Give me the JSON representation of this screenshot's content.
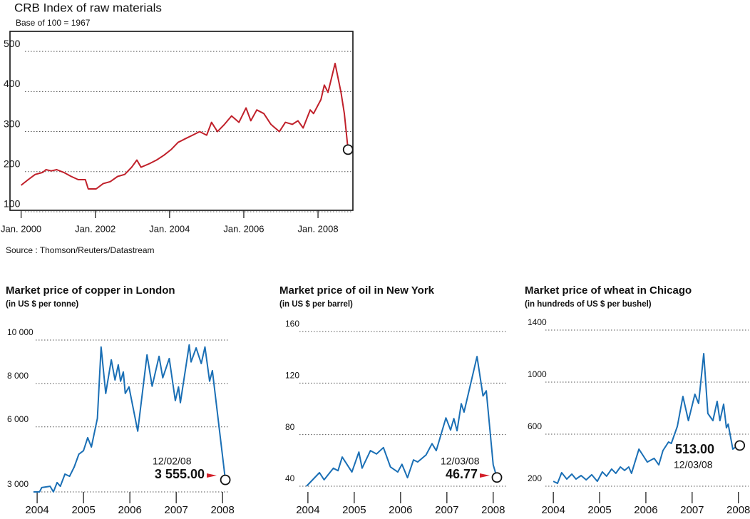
{
  "chart_data": [
    {
      "type": "line",
      "title": "CRB Index of raw materials",
      "subtitle": "Base of 100 = 1967",
      "source": "Source : Thomson/Reuters/Datastream",
      "color": "#c0202a",
      "grid": true,
      "xlim": [
        1999.7,
        2008.94
      ],
      "ylim": [
        100,
        550
      ],
      "xticks": [
        {
          "value": 2000,
          "label": "Jan. 2000"
        },
        {
          "value": 2002,
          "label": "Jan. 2002"
        },
        {
          "value": 2004,
          "label": "Jan. 2004"
        },
        {
          "value": 2006,
          "label": "Jan. 2006"
        },
        {
          "value": 2008,
          "label": "Jan. 2008"
        }
      ],
      "yticks": [
        100,
        200,
        300,
        400,
        500
      ],
      "x": [
        2000.0,
        2000.19,
        2000.38,
        2000.58,
        2000.67,
        2000.81,
        2000.96,
        2001.15,
        2001.35,
        2001.54,
        2001.73,
        2001.81,
        2002.02,
        2002.21,
        2002.4,
        2002.6,
        2002.79,
        2002.98,
        2003.12,
        2003.23,
        2003.46,
        2003.65,
        2003.85,
        2004.04,
        2004.23,
        2004.42,
        2004.62,
        2004.81,
        2005.0,
        2005.13,
        2005.29,
        2005.48,
        2005.67,
        2005.87,
        2006.06,
        2006.19,
        2006.35,
        2006.54,
        2006.73,
        2006.96,
        2007.12,
        2007.31,
        2007.46,
        2007.6,
        2007.79,
        2007.88,
        2008.08,
        2008.17,
        2008.27,
        2008.46,
        2008.62,
        2008.71,
        2008.81
      ],
      "values": [
        166,
        180,
        193,
        198,
        205,
        202,
        205,
        198,
        188,
        180,
        180,
        157,
        157,
        170,
        175,
        188,
        193,
        211,
        229,
        211,
        220,
        229,
        241,
        255,
        273,
        282,
        291,
        300,
        291,
        323,
        300,
        318,
        339,
        323,
        359,
        327,
        354,
        345,
        318,
        300,
        323,
        318,
        327,
        309,
        354,
        345,
        380,
        416,
        398,
        470,
        398,
        345,
        255
      ]
    },
    {
      "type": "line",
      "title": "Market price of copper in London",
      "subtitle": "(in US $ per tonne)",
      "color": "#1a6fb5",
      "grid": true,
      "xlim": [
        2003.66,
        2008.12
      ],
      "ylim": [
        3000,
        10000
      ],
      "xticks": [
        2004,
        2005,
        2006,
        2007,
        2008
      ],
      "yticks": [
        {
          "value": 3000,
          "label": "3 000"
        },
        {
          "value": 6000,
          "label": "6 000"
        },
        {
          "value": 8000,
          "label": "8 000"
        },
        {
          "value": 10000,
          "label": "10 000"
        }
      ],
      "x": [
        2003.92,
        2004.05,
        2004.1,
        2004.28,
        2004.35,
        2004.43,
        2004.5,
        2004.6,
        2004.7,
        2004.8,
        2004.9,
        2005.0,
        2005.09,
        2005.17,
        2005.3,
        2005.38,
        2005.48,
        2005.6,
        2005.68,
        2005.75,
        2005.8,
        2005.86,
        2005.9,
        2005.98,
        2006.17,
        2006.37,
        2006.48,
        2006.63,
        2006.71,
        2006.85,
        2006.98,
        2007.05,
        2007.09,
        2007.28,
        2007.32,
        2007.43,
        2007.54,
        2007.62,
        2007.72,
        2007.78,
        2008.06
      ],
      "values": [
        3000,
        3000,
        3200,
        3260,
        3000,
        3430,
        3260,
        3820,
        3720,
        4150,
        4740,
        4900,
        5500,
        5070,
        6390,
        9680,
        7540,
        9090,
        8160,
        8860,
        8100,
        8530,
        7540,
        7840,
        5800,
        9320,
        7870,
        9250,
        8260,
        9150,
        7210,
        7840,
        7110,
        9780,
        8990,
        9640,
        8920,
        9680,
        8100,
        8590,
        3555
      ],
      "end_label": "3 555.00",
      "end_date": "12/02/08"
    },
    {
      "type": "line",
      "title": "Market price of oil in New York",
      "subtitle": "(in US $ per barrel)",
      "color": "#1a6fb5",
      "grid": true,
      "xlim": [
        2003.54,
        2008.28
      ],
      "ylim": [
        40,
        160
      ],
      "xticks": [
        2004,
        2005,
        2006,
        2007,
        2008
      ],
      "yticks": [
        40,
        80,
        120,
        160
      ],
      "x": [
        2003.97,
        2004.25,
        2004.35,
        2004.55,
        2004.65,
        2004.74,
        2004.95,
        2005.1,
        2005.17,
        2005.35,
        2005.48,
        2005.63,
        2005.78,
        2005.94,
        2006.03,
        2006.15,
        2006.28,
        2006.37,
        2006.55,
        2006.68,
        2006.77,
        2006.98,
        2007.08,
        2007.15,
        2007.22,
        2007.31,
        2007.37,
        2007.65,
        2007.78,
        2007.85,
        2008.0,
        2008.08
      ],
      "values": [
        40,
        50.5,
        45,
        54,
        52,
        62.6,
        51,
        66.5,
        54,
        67.6,
        65,
        70,
        55,
        51,
        57,
        46.6,
        60.4,
        58.8,
        64.3,
        73,
        67.6,
        93,
        83.6,
        92.5,
        83,
        104,
        97.5,
        140.6,
        110,
        114,
        56.6,
        46.77
      ],
      "end_label": "46.77",
      "end_date": "12/03/08"
    },
    {
      "type": "line",
      "title": "Market price of wheat in Chicago",
      "subtitle": "(in hundreds of US $ per bushel)",
      "color": "#1a6fb5",
      "grid": true,
      "xlim": [
        2003.52,
        2008.22
      ],
      "ylim": [
        200,
        1400
      ],
      "xticks": [
        2004,
        2005,
        2006,
        2007,
        2008
      ],
      "yticks": [
        200,
        600,
        1000,
        1400
      ],
      "x": [
        2004.0,
        2004.09,
        2004.18,
        2004.29,
        2004.4,
        2004.49,
        2004.6,
        2004.71,
        2004.83,
        2004.95,
        2005.06,
        2005.15,
        2005.26,
        2005.35,
        2005.45,
        2005.54,
        2005.63,
        2005.69,
        2005.85,
        2005.95,
        2006.03,
        2006.18,
        2006.28,
        2006.37,
        2006.49,
        2006.55,
        2006.68,
        2006.8,
        2006.92,
        2007.06,
        2007.14,
        2007.25,
        2007.34,
        2007.45,
        2007.54,
        2007.6,
        2007.68,
        2007.74,
        2007.78,
        2007.88,
        2007.94,
        2008.03
      ],
      "values": [
        238,
        222,
        304,
        255,
        293,
        255,
        282,
        249,
        288,
        238,
        310,
        277,
        332,
        299,
        348,
        321,
        348,
        299,
        485,
        430,
        386,
        414,
        364,
        474,
        540,
        529,
        660,
        890,
        704,
        907,
        836,
        1219,
        759,
        704,
        852,
        704,
        830,
        649,
        677,
        485,
        501,
        513
      ],
      "end_label": "513.00",
      "end_date": "12/03/08"
    }
  ]
}
